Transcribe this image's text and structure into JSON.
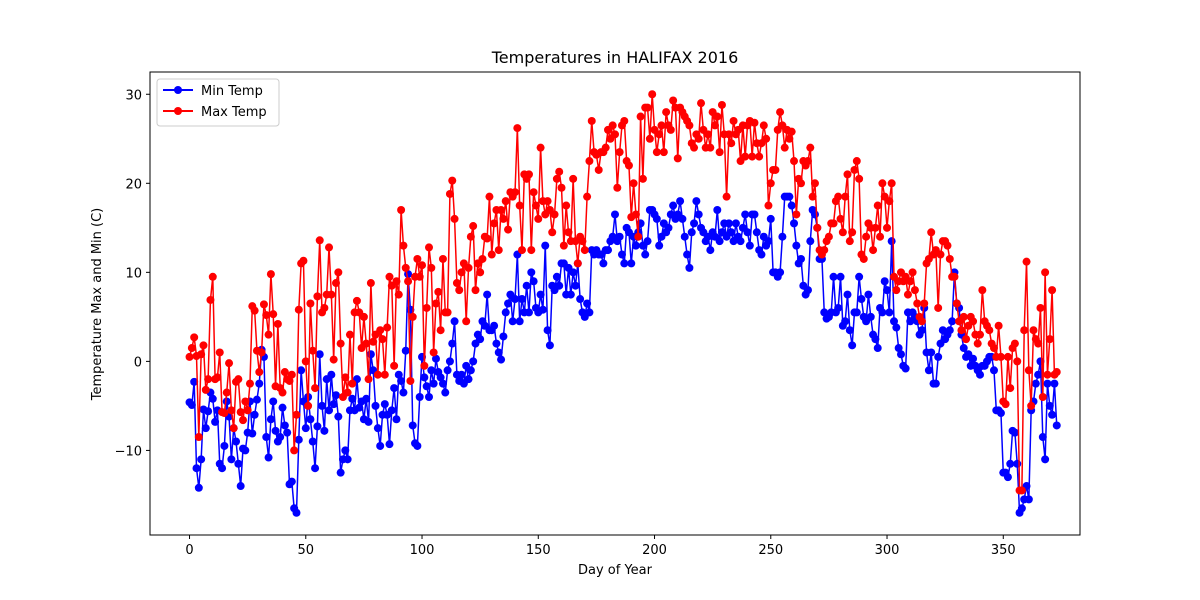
{
  "chart_data": {
    "type": "line",
    "title": "Temperatures in  HALIFAX 2016",
    "xlabel": "Day of Year",
    "ylabel": "Temperature Max and Min (C)",
    "xlim": [
      -17,
      383
    ],
    "ylim": [
      -19.5,
      32.5
    ],
    "xticks": [
      0,
      50,
      100,
      150,
      200,
      250,
      300,
      350
    ],
    "yticks": [
      -10,
      0,
      10,
      20,
      30
    ],
    "legend_position": "top-left",
    "grid": false,
    "series": [
      {
        "name": "Min Temp",
        "color": "#0000ff",
        "values": [
          -4.6,
          -4.9,
          -2.3,
          -12.0,
          -14.2,
          -11.0,
          -5.4,
          -7.5,
          -5.6,
          -3.5,
          -4.2,
          -6.8,
          -5.5,
          -11.5,
          -12.0,
          -9.5,
          -4.5,
          -6.2,
          -11.0,
          -7.5,
          -9.0,
          -11.5,
          -14.0,
          -9.8,
          -10.0,
          -8.0,
          -4.5,
          -8.1,
          -6.0,
          -4.3,
          -2.5,
          1.3,
          0.5,
          -8.5,
          -10.8,
          -6.5,
          -4.5,
          -7.8,
          -9.0,
          -8.5,
          -5.2,
          -7.2,
          -8.0,
          -13.8,
          -13.5,
          -16.5,
          -17.0,
          -8.8,
          -1.0,
          -4.5,
          -7.5,
          -4.0,
          -6.5,
          -9.0,
          -12.0,
          -7.3,
          0.8,
          -5.0,
          -7.8,
          -2.0,
          -5.5,
          -1.5,
          -4.8,
          -3.8,
          -6.2,
          -12.5,
          -11.0,
          -10.0,
          -11.0,
          -5.5,
          -4.2,
          -5.5,
          -2.0,
          -5.2,
          -4.5,
          -6.5,
          -4.2,
          -6.8,
          0.8,
          -1.0,
          -5.0,
          -7.5,
          -9.5,
          -6.0,
          -4.8,
          -6.0,
          -9.3,
          -5.5,
          -3.0,
          -6.5,
          -1.5,
          -2.2,
          -3.5,
          1.2,
          9.8,
          5.8,
          -7.2,
          -9.2,
          -9.5,
          -4.0,
          0.5,
          -1.8,
          -2.8,
          -4.0,
          -1.0,
          -2.5,
          0.3,
          -1.2,
          -1.8,
          -2.5,
          -3.5,
          -1.0,
          0.0,
          2.0,
          4.5,
          -1.5,
          -2.2,
          -1.5,
          -2.5,
          -0.5,
          -2.0,
          -1.0,
          0.0,
          2.0,
          3.0,
          2.5,
          4.5,
          4.0,
          7.5,
          3.5,
          3.5,
          4.0,
          2.0,
          1.0,
          0.2,
          2.8,
          5.5,
          6.5,
          7.5,
          4.5,
          7.0,
          12.0,
          4.5,
          7.0,
          5.5,
          8.5,
          5.5,
          10.0,
          9.0,
          6.0,
          5.5,
          7.5,
          5.8,
          13.0,
          3.5,
          1.8,
          8.5,
          8.0,
          9.5,
          8.5,
          11.0,
          11.0,
          7.5,
          10.5,
          7.5,
          10.0,
          8.5,
          11.0,
          7.0,
          5.5,
          5.0,
          6.5,
          5.5,
          12.5,
          12.0,
          12.5,
          12.0,
          12.0,
          11.0,
          12.5,
          12.5,
          13.5,
          14.0,
          16.5,
          13.5,
          14.0,
          12.0,
          11.0,
          15.0,
          14.5,
          11.0,
          14.0,
          13.0,
          14.5,
          15.5,
          13.0,
          12.0,
          13.5,
          17.0,
          17.0,
          16.5,
          16.0,
          13.0,
          14.0,
          15.5,
          14.5,
          15.0,
          16.5,
          17.5,
          16.0,
          16.5,
          18.0,
          16.0,
          14.0,
          12.0,
          10.5,
          14.5,
          15.5,
          18.0,
          16.5,
          15.0,
          14.5,
          13.5,
          14.0,
          12.5,
          14.5,
          14.0,
          17.0,
          13.5,
          14.5,
          15.5,
          14.0,
          15.5,
          14.5,
          13.5,
          15.5,
          14.0,
          13.5,
          15.0,
          16.5,
          14.5,
          13.0,
          16.5,
          16.5,
          14.5,
          12.5,
          12.0,
          14.0,
          13.0,
          13.5,
          16.0,
          10.0,
          10.0,
          9.5,
          10.0,
          14.0,
          18.5,
          18.5,
          18.5,
          17.5,
          15.5,
          13.0,
          11.0,
          11.5,
          8.5,
          7.5,
          8.0,
          13.5,
          17.0,
          16.5,
          15.0,
          11.5,
          11.5,
          5.5,
          4.8,
          5.0,
          5.5,
          9.5,
          5.5,
          6.0,
          9.5,
          4.0,
          4.5,
          7.5,
          3.5,
          1.8,
          5.5,
          5.5,
          9.5,
          7.0,
          5.0,
          4.5,
          7.5,
          5.0,
          3.0,
          2.5,
          1.5,
          6.0,
          5.5,
          9.0,
          8.0,
          5.5,
          13.5,
          4.5,
          3.8,
          1.5,
          0.8,
          -0.5,
          -0.8,
          5.5,
          4.5,
          5.5,
          5.0,
          4.5,
          3.0,
          3.5,
          6.0,
          1.0,
          -1.0,
          1.0,
          -2.5,
          -2.5,
          0.5,
          2.0,
          3.5,
          2.5,
          3.0,
          3.5,
          4.5,
          10.0,
          6.5,
          6.0,
          3.0,
          1.5,
          0.5,
          0.8,
          -0.5,
          0.3,
          -0.5,
          -1.0,
          -1.5,
          -0.5,
          -0.5,
          0.0,
          0.5,
          0.5,
          -1.0,
          -5.5,
          -5.5,
          -5.8,
          -12.5,
          -12.5,
          -13.0,
          -11.5,
          -7.8,
          -8.0,
          -11.5,
          -17.0,
          -16.5,
          -15.5,
          -14.0,
          -15.5,
          -5.5,
          -4.5,
          -2.5,
          -1.5,
          0.0,
          -8.5,
          -11.0,
          -2.5,
          -5.0,
          -6.0,
          -2.5,
          -7.2
        ]
      },
      {
        "name": "Max Temp",
        "color": "#ff0000",
        "values": [
          0.5,
          1.5,
          2.7,
          0.6,
          -8.5,
          0.8,
          1.8,
          -3.2,
          -2.0,
          6.9,
          9.5,
          -2.0,
          -1.8,
          1.0,
          -5.7,
          -5.8,
          -3.5,
          -0.2,
          -5.5,
          -7.5,
          -2.3,
          -2.0,
          -5.7,
          -6.6,
          -4.5,
          -5.5,
          -2.5,
          6.2,
          5.7,
          1.2,
          -1.2,
          1.0,
          6.4,
          5.2,
          3.0,
          9.8,
          5.3,
          -2.8,
          4.2,
          -3.0,
          -3.5,
          -1.2,
          -2.0,
          -2.2,
          -1.5,
          -10.0,
          -6.0,
          5.8,
          11.0,
          11.3,
          0.0,
          -5.0,
          6.5,
          1.2,
          -3.0,
          7.3,
          13.6,
          5.5,
          6.0,
          7.5,
          12.8,
          7.5,
          0.2,
          8.8,
          10.0,
          2.0,
          -4.0,
          -1.8,
          -3.5,
          3.0,
          -2.5,
          5.5,
          6.8,
          5.5,
          1.5,
          5.0,
          2.0,
          -2.0,
          8.8,
          2.2,
          3.0,
          -1.5,
          3.5,
          2.5,
          -1.5,
          3.8,
          9.5,
          8.5,
          -0.5,
          9.0,
          7.5,
          17.0,
          13.0,
          10.5,
          9.0,
          -2.2,
          5.0,
          9.5,
          11.5,
          9.5,
          10.8,
          -0.5,
          6.0,
          12.8,
          10.5,
          1.0,
          6.5,
          7.8,
          3.5,
          11.5,
          5.5,
          5.5,
          18.8,
          20.3,
          16.0,
          8.8,
          8.0,
          10.0,
          11.0,
          4.5,
          10.5,
          14.0,
          15.2,
          8.0,
          11.0,
          10.0,
          11.5,
          14.0,
          13.8,
          18.5,
          12.0,
          15.5,
          17.0,
          12.5,
          17.0,
          16.0,
          18.0,
          14.8,
          19.0,
          18.5,
          19.0,
          26.2,
          17.5,
          12.5,
          21.0,
          20.5,
          21.0,
          12.5,
          19.0,
          17.5,
          16.0,
          24.0,
          18.0,
          16.5,
          18.0,
          17.0,
          14.5,
          16.5,
          20.5,
          21.3,
          19.5,
          13.0,
          17.5,
          14.5,
          13.5,
          20.5,
          13.5,
          11.0,
          14.0,
          13.5,
          12.5,
          18.5,
          22.5,
          27.0,
          23.5,
          23.2,
          21.5,
          23.5,
          23.5,
          24.0,
          26.0,
          25.0,
          26.5,
          25.5,
          19.5,
          23.5,
          26.5,
          27.0,
          22.5,
          22.0,
          16.2,
          20.0,
          16.5,
          14.0,
          27.5,
          20.5,
          28.5,
          28.5,
          25.0,
          30.0,
          26.0,
          23.5,
          25.5,
          26.5,
          23.5,
          28.0,
          26.5,
          26.0,
          29.3,
          28.5,
          22.8,
          28.5,
          28.0,
          27.5,
          27.0,
          26.5,
          24.5,
          24.0,
          25.5,
          25.0,
          29.0,
          26.0,
          24.0,
          25.5,
          24.0,
          28.0,
          26.5,
          27.5,
          23.5,
          28.8,
          25.5,
          18.5,
          25.5,
          24.5,
          27.0,
          25.5,
          26.0,
          22.5,
          26.5,
          23.0,
          26.5,
          27.0,
          23.0,
          26.8,
          24.5,
          23.0,
          24.5,
          26.5,
          25.0,
          17.5,
          20.0,
          21.5,
          21.5,
          26.0,
          28.0,
          26.5,
          24.0,
          26.0,
          25.0,
          25.8,
          22.5,
          16.5,
          20.5,
          20.0,
          22.5,
          22.0,
          22.5,
          24.0,
          18.5,
          20.0,
          15.0,
          12.5,
          12.0,
          12.5,
          13.5,
          14.0,
          15.5,
          15.5,
          18.0,
          18.5,
          16.0,
          14.5,
          18.5,
          21.0,
          13.5,
          14.5,
          21.5,
          22.5,
          20.5,
          12.0,
          11.5,
          14.0,
          15.5,
          15.0,
          12.5,
          15.0,
          17.5,
          14.0,
          20.0,
          18.5,
          15.0,
          18.0,
          20.0,
          9.5,
          8.0,
          9.0,
          10.0,
          9.0,
          9.5,
          7.5,
          9.0,
          10.0,
          8.0,
          6.5,
          5.0,
          4.5,
          6.5,
          11.0,
          11.5,
          14.5,
          12.0,
          12.5,
          6.0,
          12.0,
          13.5,
          13.5,
          13.0,
          11.5,
          9.5,
          9.5,
          6.5,
          4.5,
          3.5,
          5.0,
          2.5,
          4.0,
          5.0,
          4.5,
          3.0,
          2.0,
          3.0,
          8.0,
          4.5,
          4.0,
          3.5,
          2.0,
          1.5,
          0.5,
          4.0,
          0.5,
          -4.5,
          -4.8,
          0.5,
          -3.0,
          1.5,
          2.0,
          0.0,
          -14.5,
          -14.5,
          3.5,
          11.2,
          -1.0,
          -5.0,
          3.5,
          2.5,
          2.0,
          6.0,
          -4.0,
          10.0,
          -1.5,
          2.5,
          8.0,
          -1.5,
          -1.2
        ]
      }
    ]
  }
}
